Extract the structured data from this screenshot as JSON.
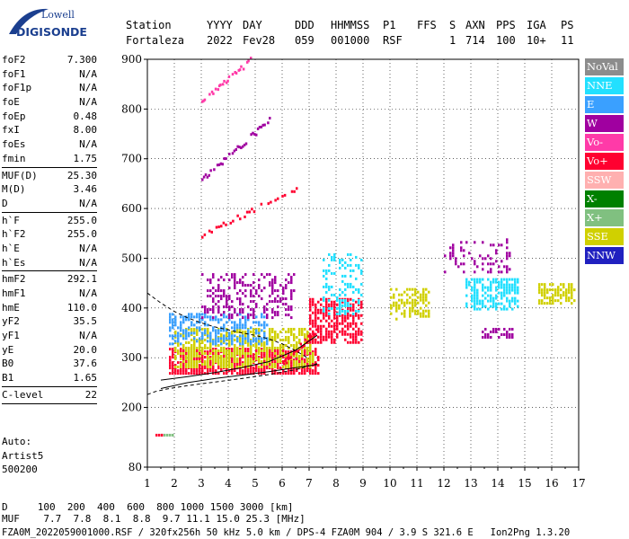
{
  "logo": {
    "line1": "Lowell",
    "line2": "DIGISONDE"
  },
  "header": {
    "labels": [
      "Station",
      "YYYY",
      "DAY",
      "DDD",
      "HHMMSS",
      "P1",
      "FFS",
      "S",
      "AXN",
      "PPS",
      "IGA",
      "PS"
    ],
    "values": [
      "Fortaleza",
      "2022",
      "Fev28",
      "059",
      "001000",
      "RSF",
      "1",
      "714",
      "100",
      "10+",
      "11"
    ]
  },
  "params": [
    [
      {
        "label": "foF2",
        "value": "7.300"
      },
      {
        "label": "foF1",
        "value": "N/A"
      },
      {
        "label": "foF1p",
        "value": "N/A"
      },
      {
        "label": "foE",
        "value": "N/A"
      },
      {
        "label": "foEp",
        "value": "0.48"
      },
      {
        "label": "fxI",
        "value": "8.00"
      },
      {
        "label": "foEs",
        "value": "N/A"
      },
      {
        "label": "fmin",
        "value": "1.75"
      }
    ],
    [
      {
        "label": "MUF(D)",
        "value": "25.30"
      },
      {
        "label": "M(D)",
        "value": "3.46"
      },
      {
        "label": "D",
        "value": "N/A"
      }
    ],
    [
      {
        "label": "h`F",
        "value": "255.0"
      },
      {
        "label": "h`F2",
        "value": "255.0"
      },
      {
        "label": "h`E",
        "value": "N/A"
      },
      {
        "label": "h`Es",
        "value": "N/A"
      }
    ],
    [
      {
        "label": "hmF2",
        "value": "292.1"
      },
      {
        "label": "hmF1",
        "value": "N/A"
      },
      {
        "label": "hmE",
        "value": "110.0"
      },
      {
        "label": "yF2",
        "value": "35.5"
      },
      {
        "label": "yF1",
        "value": "N/A"
      },
      {
        "label": "yE",
        "value": "20.0"
      },
      {
        "label": "B0",
        "value": "37.6"
      },
      {
        "label": "B1",
        "value": "1.65"
      }
    ],
    [
      {
        "label": "C-level",
        "value": "22"
      }
    ]
  ],
  "auto": {
    "line1": "Auto:",
    "line2": "Artist5",
    "line3": "500200"
  },
  "legend": [
    {
      "label": "NoVal",
      "color": "#8c8c8c"
    },
    {
      "label": "NNE",
      "color": "#22e0ff"
    },
    {
      "label": "E",
      "color": "#3aa0ff"
    },
    {
      "label": "W",
      "color": "#a000a0"
    },
    {
      "label": "Vo-",
      "color": "#ff3aa8"
    },
    {
      "label": "Vo+",
      "color": "#ff0030"
    },
    {
      "label": "SSW",
      "color": "#ffb0b0"
    },
    {
      "label": "X-",
      "color": "#008000"
    },
    {
      "label": "X+",
      "color": "#80c080"
    },
    {
      "label": "SSE",
      "color": "#d0d000"
    },
    {
      "label": "NNW",
      "color": "#2020c0"
    }
  ],
  "footer": {
    "line1": "D     100  200  400  600  800 1000 1500 3000 [km]",
    "line2": "MUF    7.7  7.8  8.1  8.8  9.7 11.1 15.0 25.3 [MHz]",
    "line3": "FZA0M_2022059001000.RSF / 320fx256h 50 kHz 5.0 km / DPS-4 FZA0M 904 / 3.9 S 321.6 E   Ion2Png 1.3.20"
  },
  "chart_data": {
    "type": "scatter",
    "title": "",
    "xlabel": "",
    "ylabel": "",
    "xlim": [
      1,
      17
    ],
    "ylim": [
      80,
      900
    ],
    "x_ticks": [
      1,
      2,
      3,
      4,
      5,
      6,
      7,
      8,
      9,
      10,
      11,
      12,
      13,
      14,
      15,
      16,
      17
    ],
    "y_ticks": [
      80,
      200,
      300,
      400,
      500,
      600,
      700,
      800,
      900
    ],
    "grid": true,
    "legend_position": "right",
    "clusters": [
      {
        "series": "Vo+",
        "x": [
          1.8,
          7.4
        ],
        "y": [
          270,
          320
        ],
        "density": 0.8
      },
      {
        "series": "SSE",
        "x": [
          2.0,
          7.2
        ],
        "y": [
          280,
          360
        ],
        "density": 0.6
      },
      {
        "series": "E",
        "x": [
          1.8,
          5.5
        ],
        "y": [
          330,
          390
        ],
        "density": 0.5
      },
      {
        "series": "W",
        "x": [
          3.0,
          6.5
        ],
        "y": [
          380,
          470
        ],
        "density": 0.35
      },
      {
        "series": "Vo+",
        "x": [
          7.0,
          9.0
        ],
        "y": [
          330,
          420
        ],
        "density": 0.6
      },
      {
        "series": "NNE",
        "x": [
          7.5,
          9.0
        ],
        "y": [
          390,
          510
        ],
        "density": 0.3
      },
      {
        "series": "SSE",
        "x": [
          10.0,
          11.5
        ],
        "y": [
          380,
          440
        ],
        "density": 0.5
      },
      {
        "series": "NNE",
        "x": [
          12.8,
          14.8
        ],
        "y": [
          400,
          460
        ],
        "density": 0.6
      },
      {
        "series": "W",
        "x": [
          12.0,
          14.5
        ],
        "y": [
          470,
          540
        ],
        "density": 0.25
      },
      {
        "series": "SSE",
        "x": [
          15.5,
          16.9
        ],
        "y": [
          410,
          450
        ],
        "density": 0.6
      },
      {
        "series": "W",
        "x": [
          13.4,
          14.6
        ],
        "y": [
          340,
          360
        ],
        "density": 0.4
      },
      {
        "series": "X+",
        "x": [
          1.5,
          2.0
        ],
        "y": [
          143,
          147
        ],
        "density": 1.0
      },
      {
        "series": "Vo+",
        "x": [
          1.3,
          1.6
        ],
        "y": [
          143,
          147
        ],
        "density": 1.0
      }
    ],
    "traces": [
      {
        "series": "Vo-",
        "x": [
          3.0,
          4.8
        ],
        "y": [
          820,
          900
        ]
      },
      {
        "series": "W",
        "x": [
          3.0,
          5.5
        ],
        "y": [
          660,
          780
        ]
      },
      {
        "series": "Vo+",
        "x": [
          3.0,
          6.5
        ],
        "y": [
          550,
          640
        ]
      },
      {
        "series": "Vo+",
        "x": [
          6.0,
          7.3
        ],
        "y": [
          290,
          360
        ]
      }
    ],
    "profile_curves": [
      {
        "style": "solid",
        "x": [
          1.5,
          2.5,
          3.5,
          4.5,
          5.5,
          6.5,
          7.3
        ],
        "y": [
          238,
          250,
          258,
          265,
          272,
          280,
          286
        ]
      },
      {
        "style": "solid",
        "x": [
          1.5,
          2.5,
          3.5,
          4.5,
          5.5,
          6.5,
          7.3
        ],
        "y": [
          255,
          262,
          270,
          280,
          292,
          315,
          345
        ]
      },
      {
        "style": "dashed",
        "x": [
          1.0,
          1.3,
          1.7,
          2.5,
          3.5,
          4.5,
          5.5,
          6.5,
          7.3
        ],
        "y": [
          226,
          232,
          237,
          244,
          251,
          258,
          266,
          276,
          288
        ]
      },
      {
        "style": "dashed",
        "x": [
          1.0,
          1.5,
          2.0,
          2.5,
          3.0,
          3.5,
          4.0,
          4.5,
          5.0,
          5.5,
          6.0,
          6.5,
          7.0
        ],
        "y": [
          430,
          410,
          393,
          380,
          370,
          362,
          356,
          350,
          345,
          338,
          328,
          314,
          298
        ]
      }
    ]
  }
}
